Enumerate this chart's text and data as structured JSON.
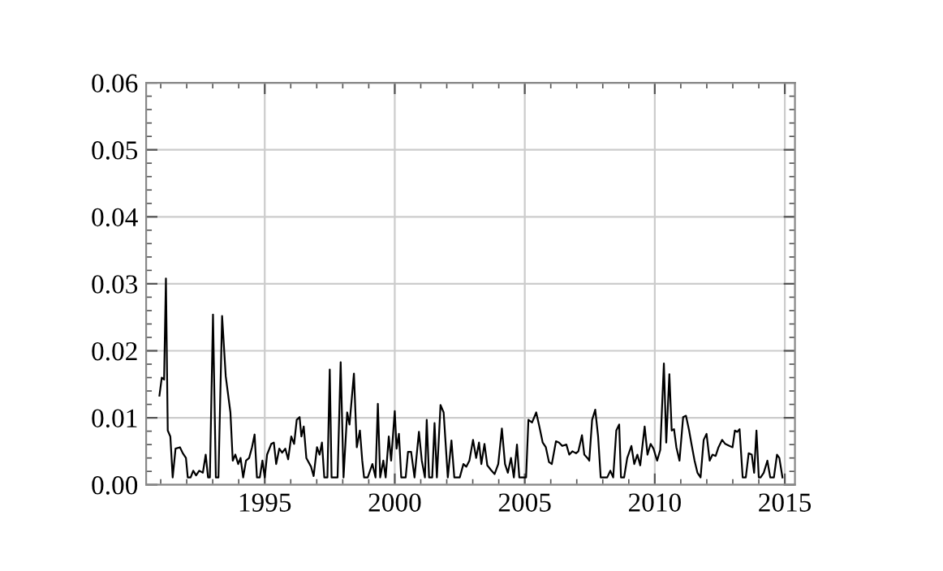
{
  "chart_data": {
    "type": "line",
    "x": [
      1990.95,
      1991.04,
      1991.13,
      1991.2,
      1991.27,
      1991.37,
      1991.46,
      1991.57,
      1991.74,
      1991.85,
      1991.97,
      1992.04,
      1992.15,
      1992.25,
      1992.36,
      1992.48,
      1992.62,
      1992.73,
      1992.82,
      1992.89,
      1993.01,
      1993.12,
      1993.22,
      1993.36,
      1993.5,
      1993.68,
      1993.77,
      1993.87,
      1993.98,
      1994.07,
      1994.17,
      1994.28,
      1994.4,
      1994.51,
      1994.61,
      1994.7,
      1994.81,
      1994.91,
      1995.0,
      1995.09,
      1995.25,
      1995.35,
      1995.44,
      1995.56,
      1995.67,
      1995.79,
      1995.9,
      1996.02,
      1996.13,
      1996.23,
      1996.34,
      1996.41,
      1996.5,
      1996.6,
      1996.78,
      1996.88,
      1997.01,
      1997.11,
      1997.2,
      1997.29,
      1997.41,
      1997.5,
      1997.57,
      1997.8,
      1997.92,
      1998.03,
      1998.17,
      1998.26,
      1998.43,
      1998.54,
      1998.66,
      1998.75,
      1998.82,
      1998.96,
      1999.14,
      1999.26,
      1999.35,
      1999.44,
      1999.56,
      1999.65,
      1999.77,
      1999.86,
      2000.0,
      2000.07,
      2000.16,
      2000.25,
      2000.42,
      2000.51,
      2000.63,
      2000.76,
      2000.93,
      2001.04,
      2001.16,
      2001.23,
      2001.32,
      2001.44,
      2001.53,
      2001.62,
      2001.76,
      2001.88,
      2002.04,
      2002.18,
      2002.29,
      2002.5,
      2002.64,
      2002.75,
      2002.87,
      2003.01,
      2003.13,
      2003.24,
      2003.33,
      2003.45,
      2003.56,
      2003.7,
      2003.84,
      2003.98,
      2004.12,
      2004.24,
      2004.35,
      2004.47,
      2004.58,
      2004.7,
      2004.79,
      2004.93,
      2005.05,
      2005.14,
      2005.28,
      2005.44,
      2005.56,
      2005.69,
      2005.81,
      2005.93,
      2006.04,
      2006.2,
      2006.32,
      2006.44,
      2006.6,
      2006.71,
      2006.83,
      2006.97,
      2007.06,
      2007.2,
      2007.29,
      2007.41,
      2007.48,
      2007.59,
      2007.71,
      2007.82,
      2007.92,
      2008.06,
      2008.17,
      2008.29,
      2008.4,
      2008.52,
      2008.63,
      2008.7,
      2008.82,
      2008.94,
      2009.1,
      2009.21,
      2009.33,
      2009.44,
      2009.61,
      2009.72,
      2009.84,
      2009.95,
      2010.09,
      2010.21,
      2010.35,
      2010.44,
      2010.56,
      2010.65,
      2010.74,
      2010.83,
      2010.95,
      2011.09,
      2011.2,
      2011.32,
      2011.41,
      2011.53,
      2011.64,
      2011.76,
      2011.88,
      2011.99,
      2012.11,
      2012.22,
      2012.34,
      2012.45,
      2012.59,
      2012.71,
      2012.87,
      2012.99,
      2013.08,
      2013.17,
      2013.26,
      2013.38,
      2013.5,
      2013.61,
      2013.73,
      2013.82,
      2013.91,
      2014.0,
      2014.07,
      2014.19,
      2014.33,
      2014.44,
      2014.58,
      2014.7,
      2014.79,
      2014.91
    ],
    "series": [
      {
        "color": "#000000",
        "values": [
          0.0133,
          0.016,
          0.0157,
          0.0308,
          0.0081,
          0.0072,
          0.0011,
          0.0054,
          0.0056,
          0.0047,
          0.004,
          0.0011,
          0.0011,
          0.0021,
          0.0014,
          0.0021,
          0.0018,
          0.0045,
          0.0011,
          0.0011,
          0.0254,
          0.0011,
          0.0011,
          0.0252,
          0.0162,
          0.0108,
          0.0036,
          0.0045,
          0.0031,
          0.004,
          0.0011,
          0.0036,
          0.004,
          0.0056,
          0.0075,
          0.0011,
          0.0011,
          0.0036,
          0.0011,
          0.0045,
          0.0061,
          0.0063,
          0.0031,
          0.0054,
          0.0048,
          0.0054,
          0.0038,
          0.0072,
          0.0061,
          0.0097,
          0.0101,
          0.0072,
          0.0087,
          0.004,
          0.0027,
          0.0013,
          0.0056,
          0.0045,
          0.0063,
          0.0011,
          0.0011,
          0.0172,
          0.0011,
          0.0011,
          0.0183,
          0.0011,
          0.0108,
          0.009,
          0.0166,
          0.0056,
          0.0081,
          0.0036,
          0.0011,
          0.0011,
          0.0031,
          0.0011,
          0.0121,
          0.0011,
          0.0036,
          0.0011,
          0.0072,
          0.0036,
          0.011,
          0.0054,
          0.0076,
          0.0011,
          0.0011,
          0.0049,
          0.0049,
          0.0011,
          0.0079,
          0.0036,
          0.0011,
          0.0097,
          0.0011,
          0.0011,
          0.0092,
          0.0011,
          0.0119,
          0.0108,
          0.0011,
          0.0066,
          0.0011,
          0.0011,
          0.0031,
          0.0027,
          0.0036,
          0.0067,
          0.004,
          0.0063,
          0.0031,
          0.0061,
          0.0029,
          0.0022,
          0.0016,
          0.0031,
          0.0084,
          0.0031,
          0.0018,
          0.004,
          0.0011,
          0.006,
          0.0011,
          0.0011,
          0.0011,
          0.0097,
          0.0093,
          0.0108,
          0.0087,
          0.0063,
          0.0056,
          0.0034,
          0.0031,
          0.0065,
          0.0063,
          0.0058,
          0.006,
          0.0045,
          0.005,
          0.0047,
          0.005,
          0.0074,
          0.0045,
          0.004,
          0.0036,
          0.0097,
          0.0112,
          0.0072,
          0.0011,
          0.0011,
          0.0011,
          0.0021,
          0.0011,
          0.0081,
          0.009,
          0.0011,
          0.0011,
          0.004,
          0.0058,
          0.0031,
          0.0045,
          0.0029,
          0.0087,
          0.0045,
          0.0061,
          0.0054,
          0.0036,
          0.0052,
          0.0181,
          0.0063,
          0.0165,
          0.0081,
          0.0083,
          0.0056,
          0.0036,
          0.0101,
          0.0103,
          0.0081,
          0.0061,
          0.0036,
          0.0018,
          0.0011,
          0.0067,
          0.0076,
          0.0036,
          0.0045,
          0.0043,
          0.0056,
          0.0067,
          0.0061,
          0.0058,
          0.0056,
          0.0081,
          0.0079,
          0.0083,
          0.0011,
          0.0011,
          0.0047,
          0.0045,
          0.0018,
          0.0081,
          0.0011,
          0.0011,
          0.0018,
          0.0036,
          0.0011,
          0.0011,
          0.0045,
          0.004,
          0.0011
        ]
      }
    ],
    "xlim": [
      1990.44,
      2015.39
    ],
    "ylim": [
      0,
      0.06
    ],
    "xticks": [
      1995,
      2000,
      2005,
      2010,
      2015
    ],
    "yticks": [
      {
        "value": 0,
        "label": "0.00"
      },
      {
        "value": 0.01,
        "label": "0.01"
      },
      {
        "value": 0.02,
        "label": "0.02"
      },
      {
        "value": 0.03,
        "label": "0.03"
      },
      {
        "value": 0.04,
        "label": "0.04"
      },
      {
        "value": 0.05,
        "label": "0.05"
      },
      {
        "value": 0.06,
        "label": "0.06"
      }
    ],
    "grid": true,
    "marker": "none",
    "line_style": "solid"
  }
}
